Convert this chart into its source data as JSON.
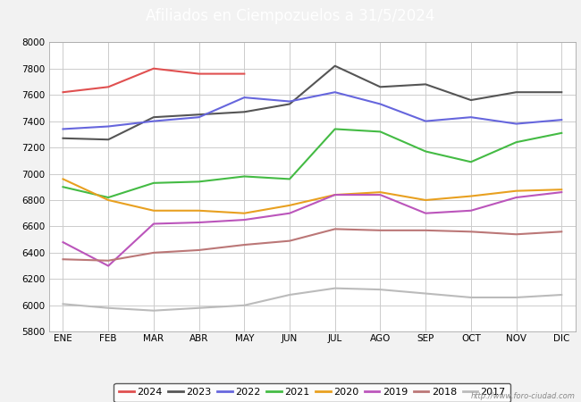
{
  "title": "Afiliados en Ciempozuelos a 31/5/2024",
  "title_bg_color": "#4a90d9",
  "title_text_color": "white",
  "months": [
    "ENE",
    "FEB",
    "MAR",
    "ABR",
    "MAY",
    "JUN",
    "JUL",
    "AGO",
    "SEP",
    "OCT",
    "NOV",
    "DIC"
  ],
  "ylim": [
    5800,
    8000
  ],
  "yticks": [
    5800,
    6000,
    6200,
    6400,
    6600,
    6800,
    7000,
    7200,
    7400,
    7600,
    7800,
    8000
  ],
  "series": {
    "2024": {
      "color": "#e05050",
      "data": [
        7620,
        7660,
        7800,
        7760,
        7760,
        null,
        null,
        null,
        null,
        null,
        null,
        null
      ]
    },
    "2023": {
      "color": "#555555",
      "data": [
        7270,
        7260,
        7430,
        7450,
        7470,
        7530,
        7820,
        7660,
        7680,
        7560,
        7620,
        7620
      ]
    },
    "2022": {
      "color": "#6666dd",
      "data": [
        7340,
        7360,
        7400,
        7430,
        7580,
        7550,
        7620,
        7530,
        7400,
        7430,
        7380,
        7410
      ]
    },
    "2021": {
      "color": "#44bb44",
      "data": [
        6900,
        6820,
        6930,
        6940,
        6980,
        6960,
        7340,
        7320,
        7170,
        7090,
        7240,
        7310
      ]
    },
    "2020": {
      "color": "#e8a020",
      "data": [
        6960,
        6800,
        6720,
        6720,
        6700,
        6760,
        6840,
        6860,
        6800,
        6830,
        6870,
        6880
      ]
    },
    "2019": {
      "color": "#bb55bb",
      "data": [
        6480,
        6300,
        6620,
        6630,
        6650,
        6700,
        6840,
        6840,
        6700,
        6720,
        6820,
        6860
      ]
    },
    "2018": {
      "color": "#bb7777",
      "data": [
        6350,
        6340,
        6400,
        6420,
        6460,
        6490,
        6580,
        6570,
        6570,
        6560,
        6540,
        6560
      ]
    },
    "2017": {
      "color": "#bbbbbb",
      "data": [
        6010,
        5980,
        5960,
        5980,
        6000,
        6080,
        6130,
        6120,
        6090,
        6060,
        6060,
        6080
      ]
    }
  },
  "watermark": "http://www.foro-ciudad.com",
  "background_color": "#f2f2f2",
  "plot_bg_color": "#ffffff",
  "grid_color": "#cccccc"
}
